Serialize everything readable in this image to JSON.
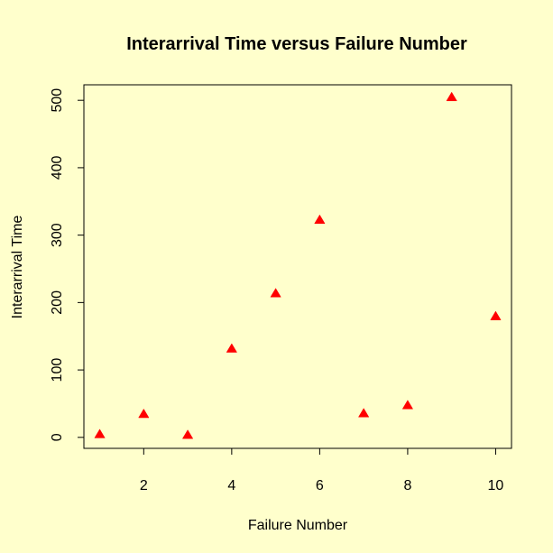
{
  "colors": {
    "background": "#ffffcc",
    "marker": "#ff0000",
    "axis": "#000000"
  },
  "chart_data": {
    "type": "scatter",
    "title": "Interarrival Time versus Failure Number",
    "xlabel": "Failure Number",
    "ylabel": "Interarrival Time",
    "marker": "filled-triangle",
    "x_ticks": [
      2,
      4,
      6,
      8,
      10
    ],
    "y_ticks": [
      0,
      100,
      200,
      300,
      400,
      500
    ],
    "xlim": [
      0.64,
      10.36
    ],
    "ylim": [
      -16.3,
      523.0
    ],
    "grid": false,
    "points": [
      {
        "x": 1,
        "y": 4
      },
      {
        "x": 2,
        "y": 34
      },
      {
        "x": 3,
        "y": 3
      },
      {
        "x": 4,
        "y": 131
      },
      {
        "x": 5,
        "y": 213
      },
      {
        "x": 6,
        "y": 322
      },
      {
        "x": 7,
        "y": 35
      },
      {
        "x": 8,
        "y": 47
      },
      {
        "x": 9,
        "y": 504
      },
      {
        "x": 10,
        "y": 179
      }
    ]
  }
}
